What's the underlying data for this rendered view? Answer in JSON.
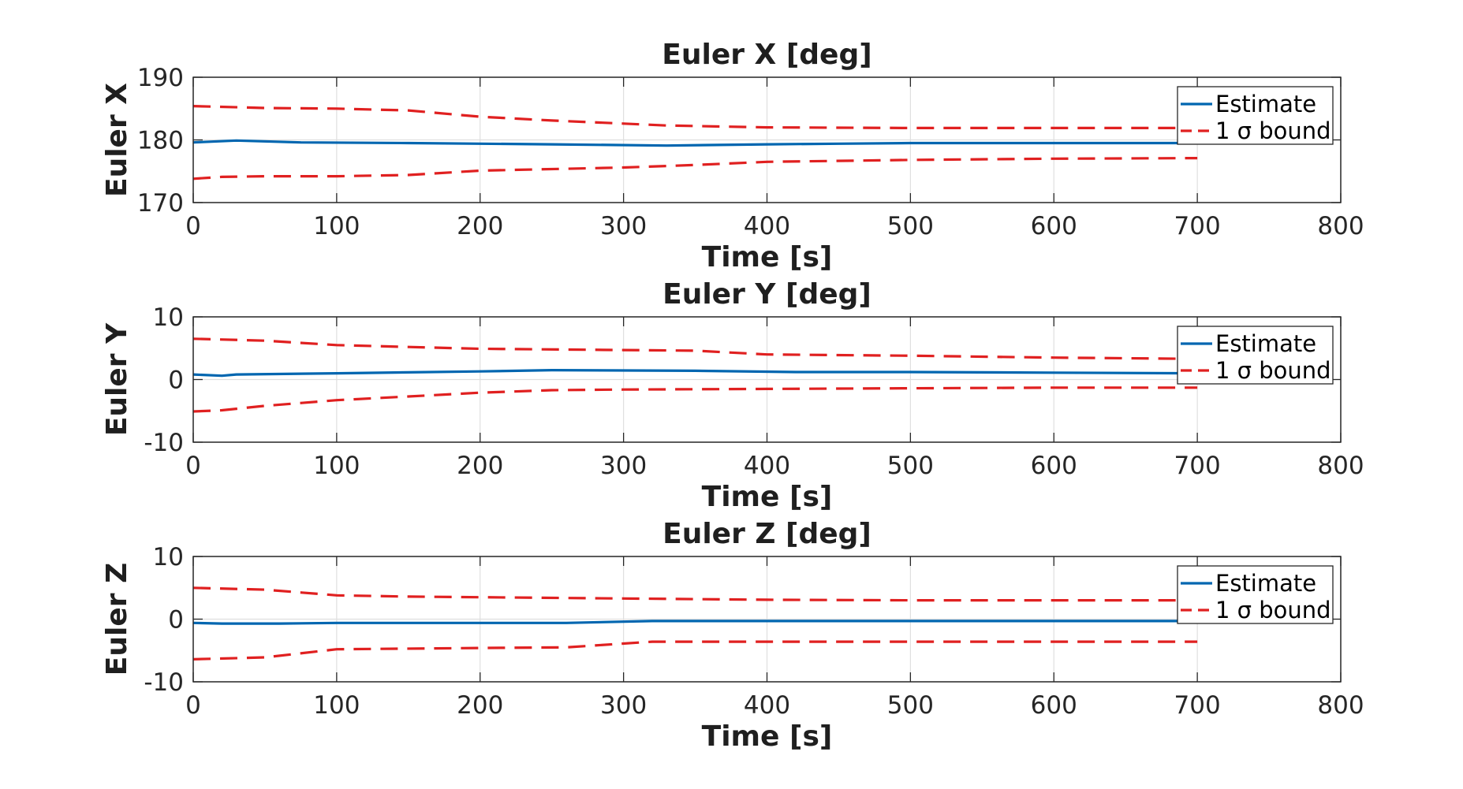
{
  "chart_data": [
    {
      "type": "line",
      "title": "Euler X [deg]",
      "xlabel": "Time [s]",
      "ylabel": "Euler X",
      "xlim": [
        0,
        800
      ],
      "ylim": [
        170,
        190
      ],
      "xticks": [
        "0",
        "100",
        "200",
        "300",
        "400",
        "500",
        "600",
        "700",
        "800"
      ],
      "yticks": [
        "170",
        "180",
        "190"
      ],
      "grid": true,
      "legend": {
        "position": "top-right",
        "entries": [
          "Estimate",
          "1 σ bound"
        ]
      },
      "series": [
        {
          "name": "Estimate",
          "style": "solid",
          "color": "#0066b0",
          "x": [
            0,
            30,
            75,
            150,
            200,
            250,
            330,
            400,
            450,
            500,
            600,
            700
          ],
          "y": [
            179.6,
            179.9,
            179.6,
            179.5,
            179.4,
            179.3,
            179.1,
            179.3,
            179.4,
            179.5,
            179.5,
            179.5
          ]
        },
        {
          "name": "1 σ bound",
          "style": "dashed",
          "color": "#e02020",
          "x": [
            0,
            50,
            100,
            150,
            200,
            250,
            300,
            330,
            400,
            500,
            600,
            700
          ],
          "y": [
            185.4,
            185.1,
            185.0,
            184.7,
            183.7,
            183.1,
            182.6,
            182.3,
            182.0,
            181.9,
            181.9,
            181.9
          ]
        },
        {
          "name": "1 σ bound (lower)",
          "style": "dashed",
          "color": "#e02020",
          "x": [
            0,
            20,
            50,
            100,
            150,
            200,
            300,
            350,
            400,
            500,
            600,
            700
          ],
          "y": [
            173.8,
            174.1,
            174.2,
            174.2,
            174.4,
            175.1,
            175.6,
            176.0,
            176.5,
            176.8,
            177.0,
            177.1
          ]
        }
      ]
    },
    {
      "type": "line",
      "title": "Euler Y [deg]",
      "xlabel": "Time [s]",
      "ylabel": "Euler Y",
      "xlim": [
        0,
        800
      ],
      "ylim": [
        -10,
        10
      ],
      "xticks": [
        "0",
        "100",
        "200",
        "300",
        "400",
        "500",
        "600",
        "700",
        "800"
      ],
      "yticks": [
        "-10",
        "0",
        "10"
      ],
      "grid": true,
      "legend": {
        "position": "top-right",
        "entries": [
          "Estimate",
          "1 σ bound"
        ]
      },
      "series": [
        {
          "name": "Estimate",
          "style": "solid",
          "color": "#0066b0",
          "x": [
            0,
            20,
            30,
            100,
            200,
            250,
            350,
            420,
            500,
            600,
            700
          ],
          "y": [
            0.8,
            0.6,
            0.8,
            1.0,
            1.3,
            1.5,
            1.4,
            1.2,
            1.2,
            1.1,
            1.0
          ]
        },
        {
          "name": "1 σ bound",
          "style": "dashed",
          "color": "#e02020",
          "x": [
            0,
            50,
            100,
            150,
            200,
            300,
            350,
            400,
            500,
            600,
            700
          ],
          "y": [
            6.5,
            6.2,
            5.5,
            5.2,
            4.9,
            4.7,
            4.6,
            4.0,
            3.8,
            3.5,
            3.3
          ]
        },
        {
          "name": "1 σ bound (lower)",
          "style": "dashed",
          "color": "#e02020",
          "x": [
            0,
            20,
            50,
            100,
            150,
            200,
            250,
            300,
            400,
            500,
            600,
            700
          ],
          "y": [
            -5.1,
            -4.9,
            -4.2,
            -3.3,
            -2.7,
            -2.1,
            -1.7,
            -1.6,
            -1.5,
            -1.4,
            -1.3,
            -1.3
          ]
        }
      ]
    },
    {
      "type": "line",
      "title": "Euler Z [deg]",
      "xlabel": "Time [s]",
      "ylabel": "Euler Z",
      "xlim": [
        0,
        800
      ],
      "ylim": [
        -10,
        10
      ],
      "xticks": [
        "0",
        "100",
        "200",
        "300",
        "400",
        "500",
        "600",
        "700",
        "800"
      ],
      "yticks": [
        "-10",
        "0",
        "10"
      ],
      "grid": true,
      "legend": {
        "position": "top-right",
        "entries": [
          "Estimate",
          "1 σ bound"
        ]
      },
      "series": [
        {
          "name": "Estimate",
          "style": "solid",
          "color": "#0066b0",
          "x": [
            0,
            20,
            60,
            100,
            200,
            260,
            320,
            400,
            500,
            600,
            700
          ],
          "y": [
            -0.6,
            -0.7,
            -0.7,
            -0.6,
            -0.6,
            -0.6,
            -0.3,
            -0.3,
            -0.3,
            -0.3,
            -0.3
          ]
        },
        {
          "name": "1 σ bound",
          "style": "dashed",
          "color": "#e02020",
          "x": [
            0,
            50,
            100,
            150,
            200,
            300,
            400,
            500,
            600,
            700
          ],
          "y": [
            5.0,
            4.7,
            3.8,
            3.6,
            3.5,
            3.3,
            3.1,
            3.0,
            3.0,
            3.0
          ]
        },
        {
          "name": "1 σ bound (lower)",
          "style": "dashed",
          "color": "#e02020",
          "x": [
            0,
            50,
            100,
            200,
            260,
            320,
            400,
            500,
            600,
            700
          ],
          "y": [
            -6.4,
            -6.1,
            -4.8,
            -4.6,
            -4.5,
            -3.6,
            -3.6,
            -3.6,
            -3.6,
            -3.6
          ]
        }
      ]
    }
  ]
}
